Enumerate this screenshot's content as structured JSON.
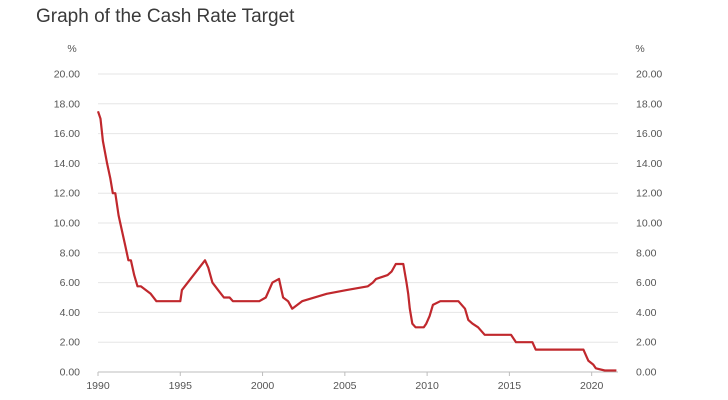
{
  "chart_data": {
    "type": "line",
    "title": "Graph of the Cash Rate Target",
    "left_unit": "%",
    "right_unit": "%",
    "xlim": [
      1990,
      2021.6
    ],
    "ylim": [
      0,
      20
    ],
    "x_ticks": [
      1990,
      1995,
      2000,
      2005,
      2010,
      2015,
      2020
    ],
    "y_ticks": [
      "0.00",
      "2.00",
      "4.00",
      "6.00",
      "8.00",
      "10.00",
      "12.00",
      "14.00",
      "16.00",
      "18.00",
      "20.00"
    ],
    "grid": true,
    "line_color": "#c0282d",
    "series": [
      {
        "x": [
          1990.0,
          1990.15,
          1990.3,
          1990.55,
          1990.75,
          1990.9,
          1991.05,
          1991.25,
          1991.45,
          1991.65,
          1991.85,
          1992.0,
          1992.2,
          1992.4,
          1992.6,
          1993.2,
          1993.55,
          1995.0,
          1995.1,
          1996.5,
          1996.7,
          1996.95,
          1997.3,
          1997.65,
          1998.0,
          1998.2,
          1999.8,
          2000.2,
          2000.4,
          2000.6,
          2001.0,
          2001.25,
          2001.55,
          2001.8,
          2002.4,
          2003.9,
          2005.1,
          2006.4,
          2006.7,
          2006.9,
          2007.6,
          2007.85,
          2008.1,
          2008.55,
          2008.75,
          2008.85,
          2008.95,
          2009.1,
          2009.3,
          2009.8,
          2009.95,
          2010.15,
          2010.35,
          2010.8,
          2011.9,
          2012.3,
          2012.5,
          2012.75,
          2013.1,
          2013.5,
          2015.1,
          2015.4,
          2016.4,
          2016.6,
          2019.5,
          2019.7,
          2019.8,
          2020.1,
          2020.25,
          2020.8,
          2021.5
        ],
        "y": [
          17.5,
          17.0,
          15.5,
          14.0,
          13.0,
          12.0,
          12.0,
          10.5,
          9.5,
          8.5,
          7.5,
          7.5,
          6.5,
          5.75,
          5.75,
          5.25,
          4.75,
          4.75,
          5.5,
          7.5,
          7.0,
          6.0,
          5.5,
          5.0,
          5.0,
          4.75,
          4.75,
          5.0,
          5.5,
          6.0,
          6.25,
          5.0,
          4.75,
          4.25,
          4.75,
          5.25,
          5.5,
          5.75,
          6.0,
          6.25,
          6.5,
          6.75,
          7.25,
          7.25,
          6.0,
          5.25,
          4.25,
          3.25,
          3.0,
          3.0,
          3.25,
          3.75,
          4.5,
          4.75,
          4.75,
          4.25,
          3.5,
          3.25,
          3.0,
          2.5,
          2.5,
          2.0,
          2.0,
          1.5,
          1.5,
          1.0,
          0.75,
          0.5,
          0.25,
          0.1,
          0.1
        ]
      }
    ]
  }
}
